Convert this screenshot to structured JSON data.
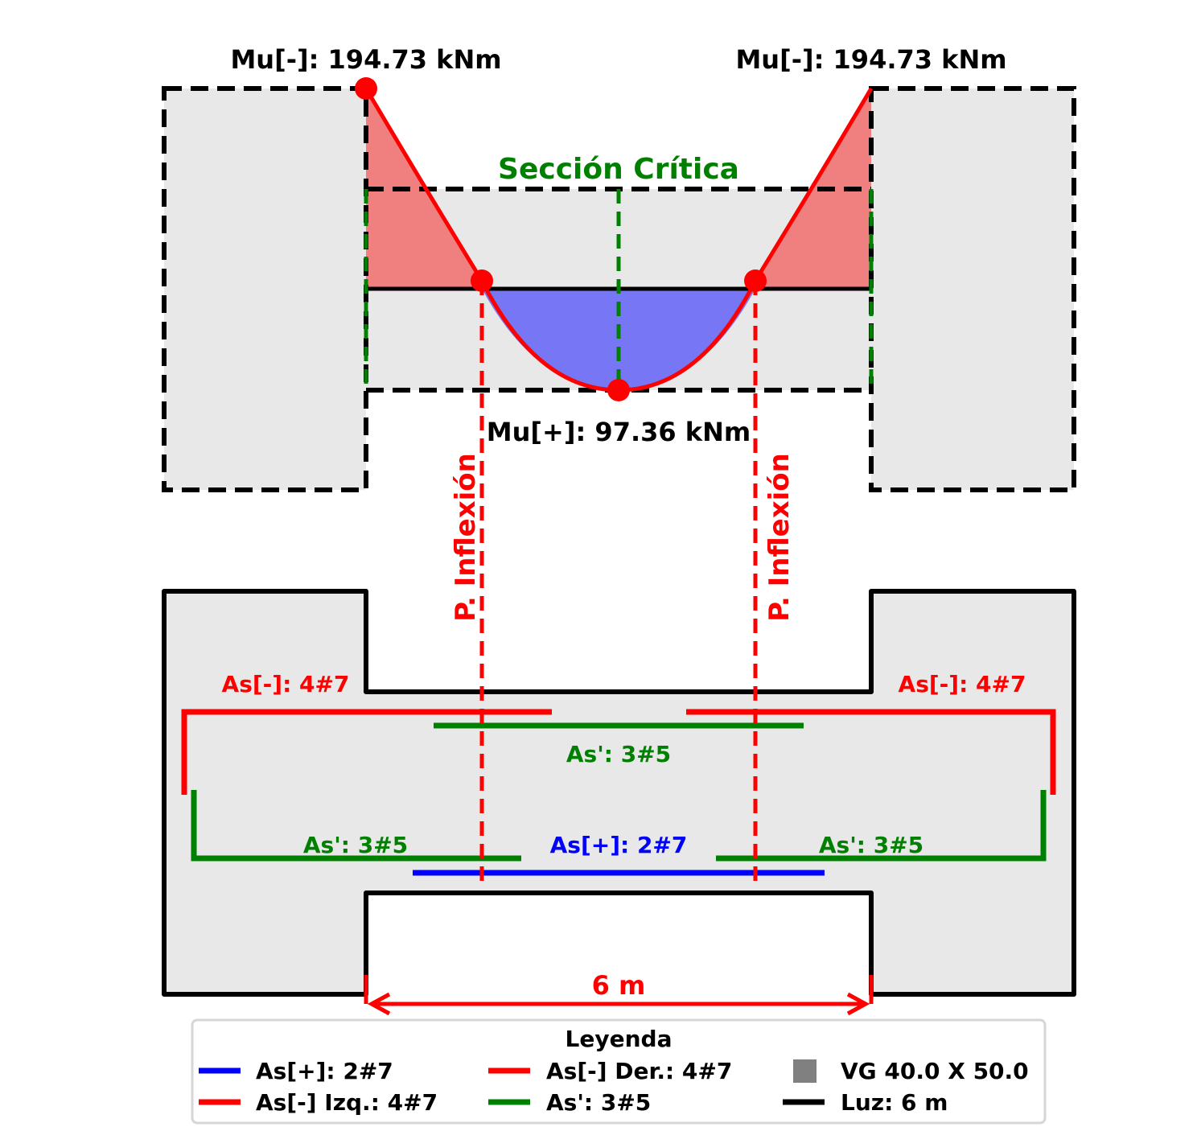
{
  "moment": {
    "mu_neg_left": "Mu[-]: 194.73 kNm",
    "mu_neg_right": "Mu[-]: 194.73 kNm",
    "mu_pos": "Mu[+]: 97.36 kNm",
    "critical_section": "Sección Crítica",
    "values_kNm": {
      "neg_left": 194.73,
      "neg_right": 194.73,
      "pos": 97.36
    }
  },
  "inflection": {
    "left": "P. Inflexión",
    "right": "P. Inflexión"
  },
  "reinforcement": {
    "as_neg_left": "As[-]: 4#7",
    "as_neg_right": "As[-]: 4#7",
    "as_prime_top": "As': 3#5",
    "as_prime_left": "As': 3#5",
    "as_prime_right": "As': 3#5",
    "as_pos": "As[+]: 2#7"
  },
  "span": {
    "label": "6 m"
  },
  "legend": {
    "title": "Leyenda",
    "items": [
      {
        "label": "As[+]: 2#7",
        "color": "#0000ff",
        "icon": "line"
      },
      {
        "label": "As[-] Der.: 4#7",
        "color": "#ff0000",
        "icon": "line"
      },
      {
        "label": "VG 40.0 X 50.0",
        "color": "#808080",
        "icon": "square"
      },
      {
        "label": "As[-] Izq.: 4#7",
        "color": "#ff0000",
        "icon": "line"
      },
      {
        "label": "As': 3#5",
        "color": "#008000",
        "icon": "line"
      },
      {
        "label": "Luz: 6 m",
        "color": "#000000",
        "icon": "line"
      }
    ]
  },
  "colors": {
    "negative_fill": "#f08080",
    "positive_fill": "#7777f5",
    "curve": "#ff0000",
    "section_fill": "#e8e8e8",
    "as_pos": "#0000ff",
    "as_neg": "#ff0000",
    "as_prime": "#008000"
  }
}
